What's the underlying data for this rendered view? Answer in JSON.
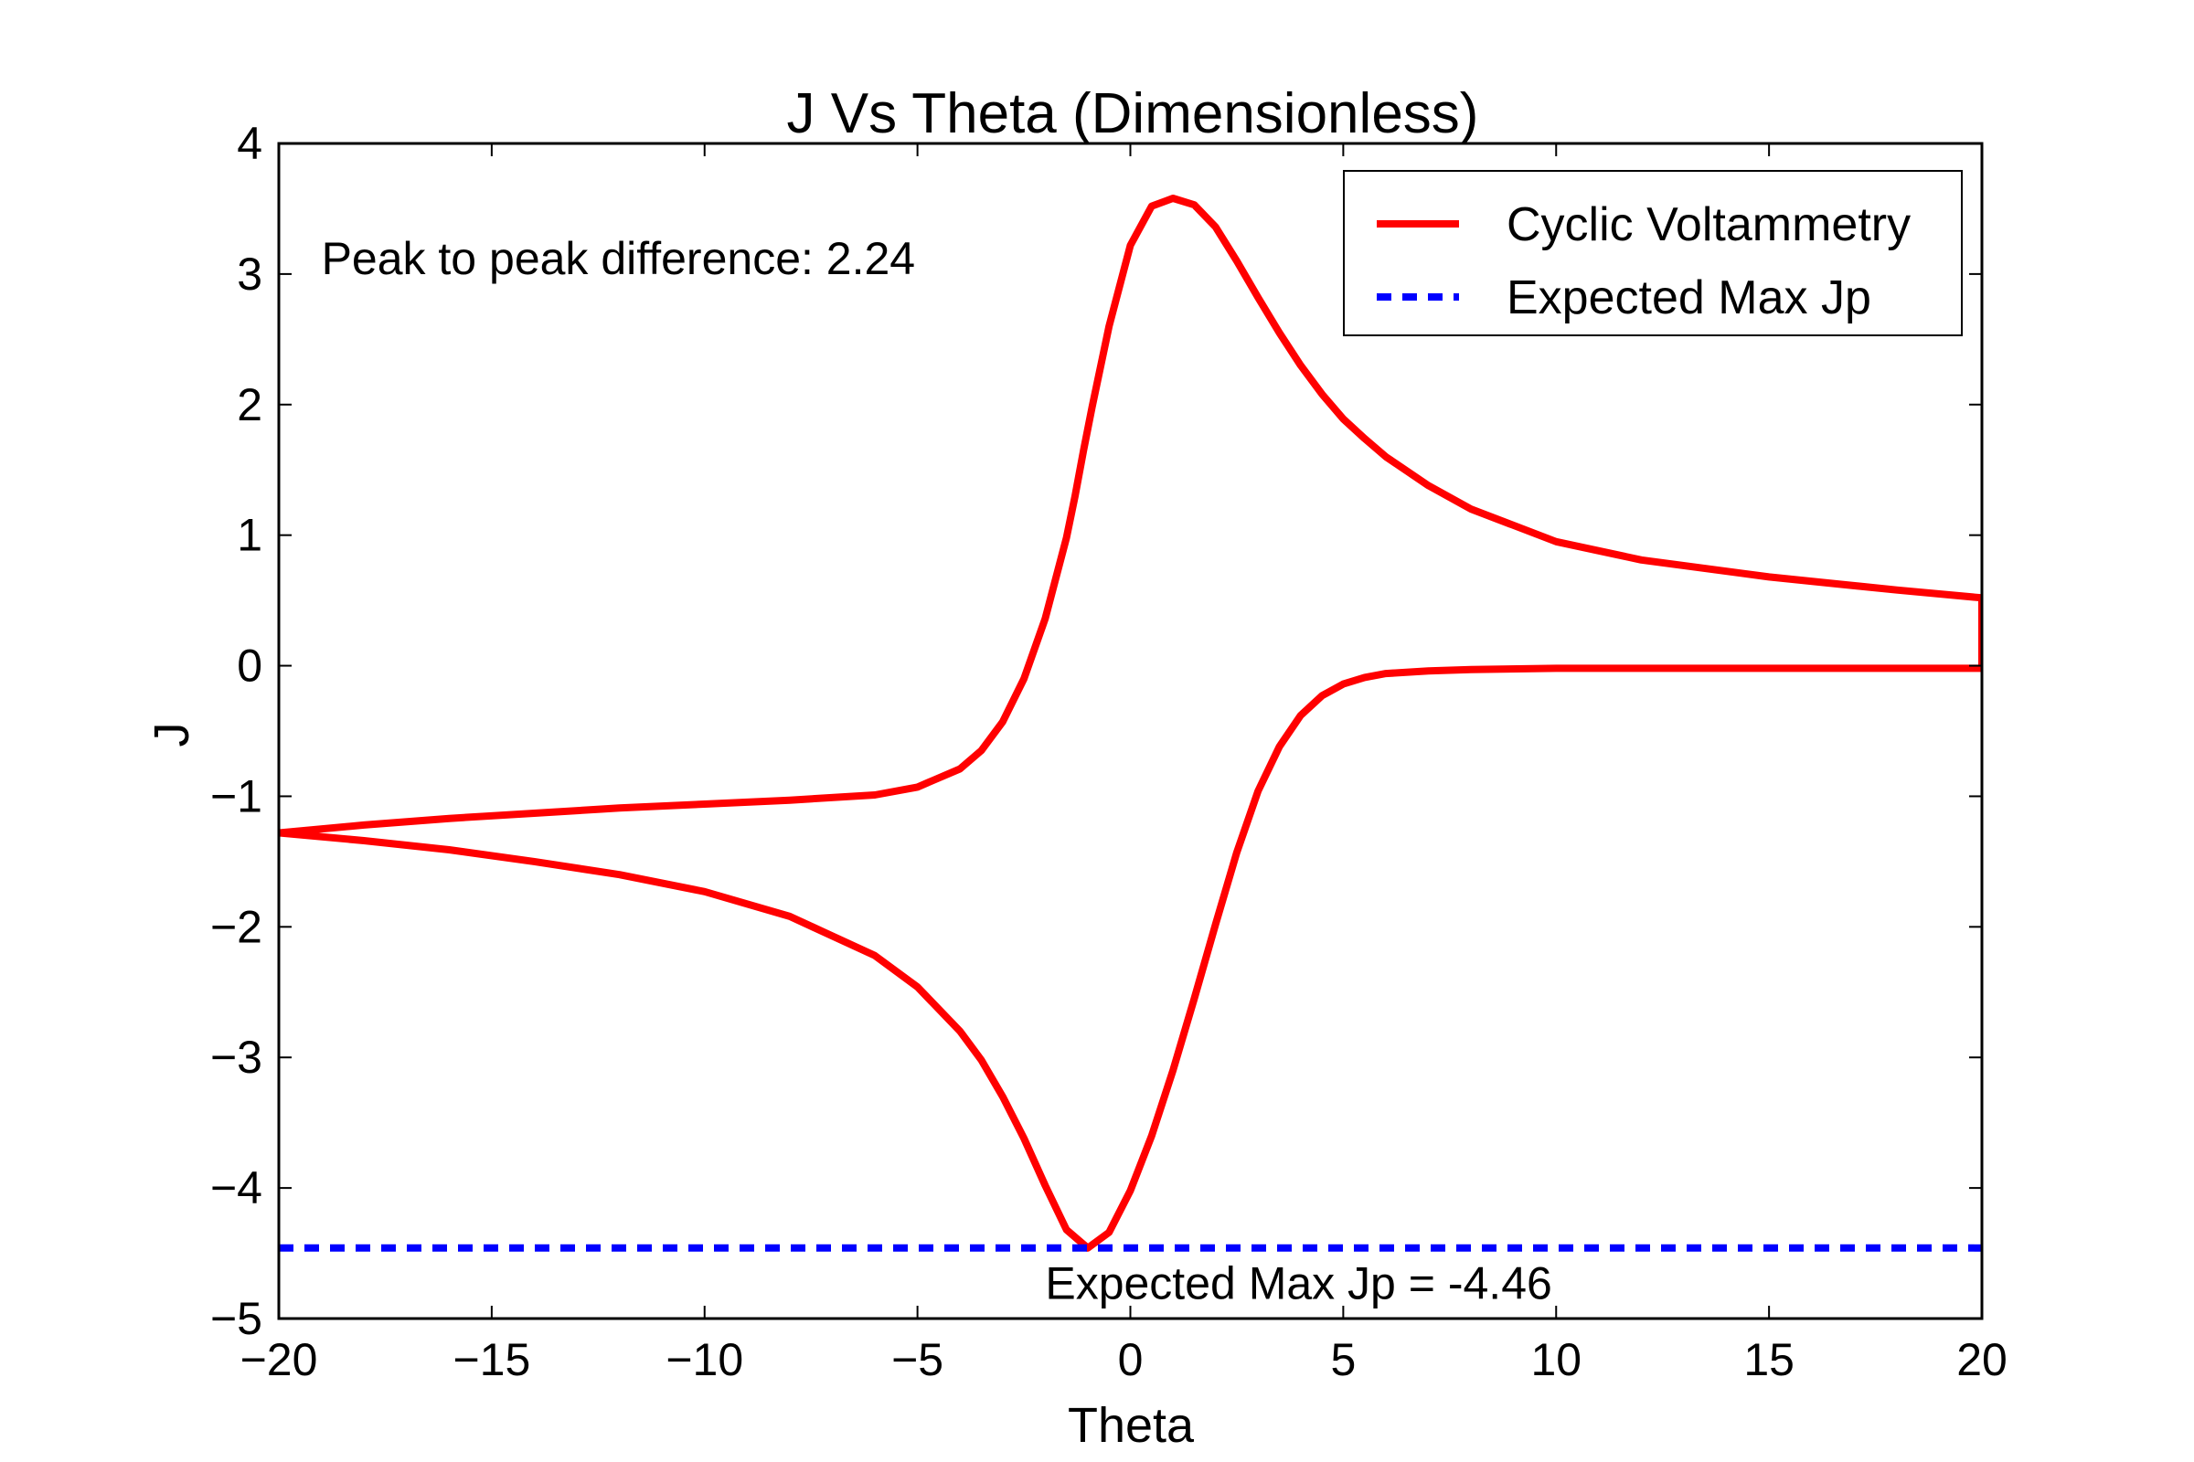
{
  "chart_data": {
    "type": "line",
    "title": "J Vs Theta (Dimensionless)",
    "xlabel": "Theta",
    "ylabel": "J",
    "xlim": [
      -20,
      20
    ],
    "ylim": [
      -5,
      4
    ],
    "grid": false,
    "legend_placement": "top-right",
    "x_ticks": [
      {
        "value": -20,
        "label": "−20"
      },
      {
        "value": -15,
        "label": "−15"
      },
      {
        "value": -10,
        "label": "−10"
      },
      {
        "value": -5,
        "label": "−5"
      },
      {
        "value": 0,
        "label": "0"
      },
      {
        "value": 5,
        "label": "5"
      },
      {
        "value": 10,
        "label": "10"
      },
      {
        "value": 15,
        "label": "15"
      },
      {
        "value": 20,
        "label": "20"
      }
    ],
    "y_ticks": [
      {
        "value": -5,
        "label": "−5"
      },
      {
        "value": -4,
        "label": "−4"
      },
      {
        "value": -3,
        "label": "−3"
      },
      {
        "value": -2,
        "label": "−2"
      },
      {
        "value": -1,
        "label": "−1"
      },
      {
        "value": 0,
        "label": "0"
      },
      {
        "value": 1,
        "label": "1"
      },
      {
        "value": 2,
        "label": "2"
      },
      {
        "value": 3,
        "label": "3"
      },
      {
        "value": 4,
        "label": "4"
      }
    ],
    "series": [
      {
        "name": "Cyclic Voltammetry",
        "color": "#ff0000",
        "style": "solid",
        "x": [
          -20,
          -18,
          -16,
          -14,
          -12,
          -10,
          -8,
          -6,
          -5,
          -4,
          -3.5,
          -3,
          -2.5,
          -2,
          -1.5,
          -1.3,
          -1.1,
          -0.9,
          -0.5,
          0,
          0.5,
          1,
          1.5,
          2,
          2.5,
          3,
          3.5,
          4,
          4.5,
          5,
          5.5,
          6,
          7,
          8,
          10,
          12,
          15,
          18,
          20,
          20,
          18,
          15,
          12,
          10,
          8,
          7,
          6,
          5.5,
          5,
          4.5,
          4,
          3.5,
          3,
          2.5,
          2,
          1.5,
          1,
          0.5,
          0,
          -0.5,
          -1,
          -1.5,
          -2,
          -2.5,
          -3,
          -3.5,
          -4,
          -5,
          -6,
          -8,
          -10,
          -12,
          -14,
          -16,
          -18,
          -20
        ],
        "y": [
          -1.28,
          -1.22,
          -1.17,
          -1.13,
          -1.09,
          -1.06,
          -1.03,
          -0.99,
          -0.93,
          -0.79,
          -0.65,
          -0.43,
          -0.1,
          0.36,
          0.98,
          1.3,
          1.65,
          1.98,
          2.6,
          3.22,
          3.52,
          3.58,
          3.53,
          3.36,
          3.1,
          2.82,
          2.55,
          2.3,
          2.08,
          1.89,
          1.74,
          1.6,
          1.38,
          1.2,
          0.95,
          0.81,
          0.68,
          0.58,
          0.52,
          -0.02,
          -0.02,
          -0.02,
          -0.02,
          -0.02,
          -0.03,
          -0.04,
          -0.06,
          -0.09,
          -0.14,
          -0.23,
          -0.38,
          -0.62,
          -0.96,
          -1.43,
          -1.98,
          -2.55,
          -3.1,
          -3.6,
          -4.02,
          -4.34,
          -4.46,
          -4.32,
          -3.98,
          -3.62,
          -3.3,
          -3.02,
          -2.8,
          -2.46,
          -2.22,
          -1.92,
          -1.73,
          -1.6,
          -1.5,
          -1.41,
          -1.34,
          -1.28
        ]
      },
      {
        "name": "Expected Max Jp",
        "color": "#0000ff",
        "style": "dashed",
        "x": [
          -20,
          20
        ],
        "y": [
          -4.46,
          -4.46
        ]
      }
    ],
    "annotations": [
      {
        "text": "Peak to peak difference: 2.24",
        "x": -19.0,
        "y": 3.0
      },
      {
        "text": "Expected Max Jp = -4.46",
        "x": -2.0,
        "y": -4.85
      }
    ]
  }
}
